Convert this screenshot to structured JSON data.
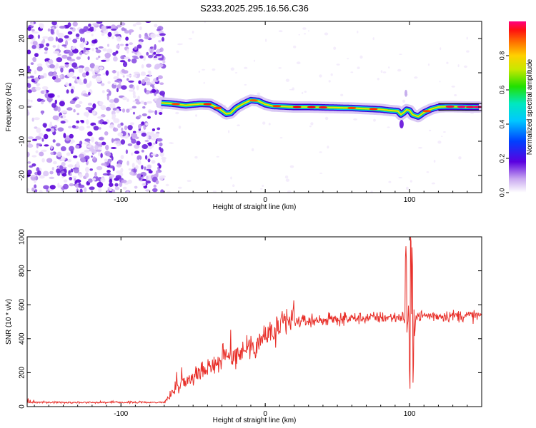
{
  "title": "S233.2025.295.16.56.C36",
  "chart_data": [
    {
      "type": "heatmap",
      "name": "spectrogram",
      "xlabel": "Height of straight line (km)",
      "ylabel": "Frequency (Hz)",
      "xlim": [
        -165,
        150
      ],
      "ylim": [
        -25,
        25
      ],
      "xticks": [
        -100,
        0,
        100
      ],
      "yticks": [
        -20,
        -10,
        0,
        10,
        20
      ],
      "noise_region_x": [
        -165,
        -72
      ],
      "ridge": {
        "x": [
          -72,
          -65,
          -55,
          -45,
          -38,
          -32,
          -27,
          -24,
          -20,
          -15,
          -10,
          -5,
          0,
          5,
          10,
          20,
          30,
          40,
          50,
          60,
          70,
          80,
          86,
          92,
          94,
          96,
          98,
          100,
          102,
          106,
          110,
          115,
          120,
          125,
          130,
          140,
          148
        ],
        "y": [
          1.2,
          1.0,
          0.5,
          0.9,
          0.8,
          -0.5,
          -2.0,
          -1.8,
          -0.2,
          1.0,
          2.0,
          1.8,
          0.8,
          0.3,
          0.2,
          0.0,
          0.0,
          -0.1,
          -0.2,
          -0.3,
          -0.5,
          -0.7,
          -1.0,
          -1.2,
          -2.2,
          -1.6,
          -0.8,
          -1.0,
          -2.2,
          -2.8,
          -1.6,
          -0.6,
          0.0,
          0.1,
          0.1,
          0.0,
          0.0
        ]
      },
      "colorbar": {
        "label": "Normalized spectral amplitude",
        "range": [
          0.0,
          1.0
        ],
        "ticks": [
          "0.0",
          "0.2",
          "0.4",
          "0.6",
          "0.8"
        ]
      }
    },
    {
      "type": "line",
      "name": "snr",
      "xlabel": "Height of straight line (km)",
      "ylabel": "SNR (10 * v/v)",
      "xlim": [
        -165,
        150
      ],
      "ylim": [
        0,
        1000
      ],
      "xticks": [
        -100,
        0,
        100
      ],
      "yticks": [
        0,
        200,
        400,
        600,
        800,
        1000
      ],
      "color": "#e8302a",
      "trend": {
        "x": [
          -165,
          -70,
          -66,
          -60,
          -50,
          -40,
          -30,
          -20,
          -10,
          0,
          10,
          15,
          20,
          30,
          40,
          60,
          80,
          90,
          95,
          100,
          110,
          120,
          150
        ],
        "y": [
          25,
          25,
          60,
          130,
          180,
          230,
          280,
          310,
          360,
          410,
          460,
          490,
          500,
          505,
          510,
          520,
          525,
          525,
          530,
          530,
          535,
          535,
          535
        ]
      },
      "spikes": [
        {
          "x": 97.5,
          "y": 880
        },
        {
          "x": 100.8,
          "y": 1000
        },
        {
          "x": 101.8,
          "y": 820
        },
        {
          "x": 102.6,
          "y": 100
        },
        {
          "x": 100.2,
          "y": 150
        }
      ]
    }
  ]
}
